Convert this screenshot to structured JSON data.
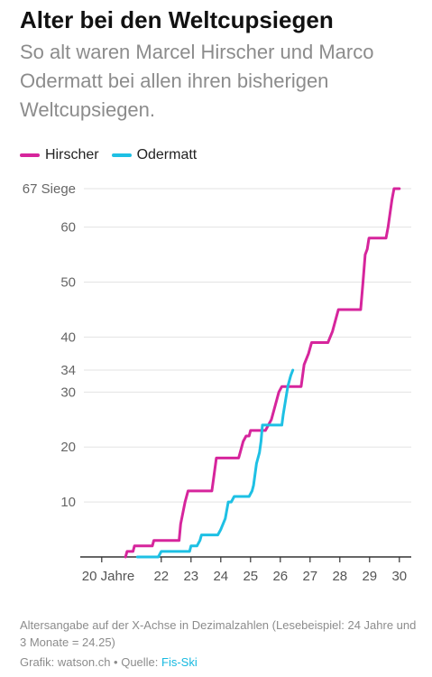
{
  "header": {
    "title": "Alter bei den Weltcupsiegen",
    "subtitle": "So alt waren Marcel Hirscher und Marco Odermatt bei allen ihren bisherigen Weltcupsiegen."
  },
  "colors": {
    "hirscher": "#d6259c",
    "odermatt": "#1ec0e4",
    "grid": "#e3e3e3",
    "axis": "#333333"
  },
  "chart_data": {
    "type": "line",
    "xlabel": "",
    "ylabel": "",
    "xlim": [
      19.4,
      30.4
    ],
    "ylim": [
      0,
      67
    ],
    "grid": true,
    "legend_position": "top-left",
    "y_ticks": [
      {
        "value": 10,
        "label": "10"
      },
      {
        "value": 20,
        "label": "20"
      },
      {
        "value": 30,
        "label": "30"
      },
      {
        "value": 34,
        "label": "34"
      },
      {
        "value": 40,
        "label": "40"
      },
      {
        "value": 50,
        "label": "50"
      },
      {
        "value": 60,
        "label": "60"
      },
      {
        "value": 67,
        "label": "67 Siege"
      }
    ],
    "x_ticks": [
      {
        "value": 20,
        "label": "20 Jahre"
      },
      {
        "value": 22,
        "label": "22"
      },
      {
        "value": 23,
        "label": "23"
      },
      {
        "value": 24,
        "label": "24"
      },
      {
        "value": 25,
        "label": "25"
      },
      {
        "value": 26,
        "label": "26"
      },
      {
        "value": 27,
        "label": "27"
      },
      {
        "value": 28,
        "label": "28"
      },
      {
        "value": 29,
        "label": "29"
      },
      {
        "value": 30,
        "label": "30"
      }
    ],
    "series": [
      {
        "name": "Hirscher",
        "points": [
          [
            20.8,
            0
          ],
          [
            20.85,
            1
          ],
          [
            21.05,
            1
          ],
          [
            21.1,
            2
          ],
          [
            21.7,
            2
          ],
          [
            21.75,
            3
          ],
          [
            22.6,
            3
          ],
          [
            22.65,
            6
          ],
          [
            22.8,
            10
          ],
          [
            22.9,
            12
          ],
          [
            23.7,
            12
          ],
          [
            23.75,
            14
          ],
          [
            23.85,
            18
          ],
          [
            24.6,
            18
          ],
          [
            24.65,
            19
          ],
          [
            24.75,
            21
          ],
          [
            24.85,
            22
          ],
          [
            24.95,
            22
          ],
          [
            25.0,
            23
          ],
          [
            25.5,
            23
          ],
          [
            25.6,
            24
          ],
          [
            25.7,
            25
          ],
          [
            25.85,
            28
          ],
          [
            25.95,
            30
          ],
          [
            26.05,
            31
          ],
          [
            26.7,
            31
          ],
          [
            26.8,
            35
          ],
          [
            26.95,
            37
          ],
          [
            27.05,
            39
          ],
          [
            27.6,
            39
          ],
          [
            27.75,
            41
          ],
          [
            27.85,
            43
          ],
          [
            27.95,
            45
          ],
          [
            28.7,
            45
          ],
          [
            28.78,
            50
          ],
          [
            28.85,
            55
          ],
          [
            28.92,
            56
          ],
          [
            28.98,
            58
          ],
          [
            29.55,
            58
          ],
          [
            29.62,
            60
          ],
          [
            29.75,
            65
          ],
          [
            29.82,
            67
          ],
          [
            30.0,
            67
          ]
        ]
      },
      {
        "name": "Odermatt",
        "points": [
          [
            21.2,
            0
          ],
          [
            21.9,
            0
          ],
          [
            22.0,
            1
          ],
          [
            22.95,
            1
          ],
          [
            23.0,
            2
          ],
          [
            23.2,
            2
          ],
          [
            23.3,
            3
          ],
          [
            23.35,
            4
          ],
          [
            23.9,
            4
          ],
          [
            24.0,
            5
          ],
          [
            24.15,
            7
          ],
          [
            24.25,
            10
          ],
          [
            24.35,
            10
          ],
          [
            24.45,
            11
          ],
          [
            24.95,
            11
          ],
          [
            25.05,
            12
          ],
          [
            25.1,
            13
          ],
          [
            25.2,
            17
          ],
          [
            25.3,
            19
          ],
          [
            25.35,
            21
          ],
          [
            25.4,
            24
          ],
          [
            26.05,
            24
          ],
          [
            26.1,
            26
          ],
          [
            26.25,
            31
          ],
          [
            26.35,
            33
          ],
          [
            26.42,
            34
          ]
        ]
      }
    ]
  },
  "footer": {
    "note": "Altersangabe auf der X-Achse in Dezimalzahlen (Lesebeispiel: 24 Jahre und 3 Monate = 24.25)",
    "credit_prefix": "Grafik: watson.ch • Quelle: ",
    "source_name": "Fis-Ski"
  }
}
